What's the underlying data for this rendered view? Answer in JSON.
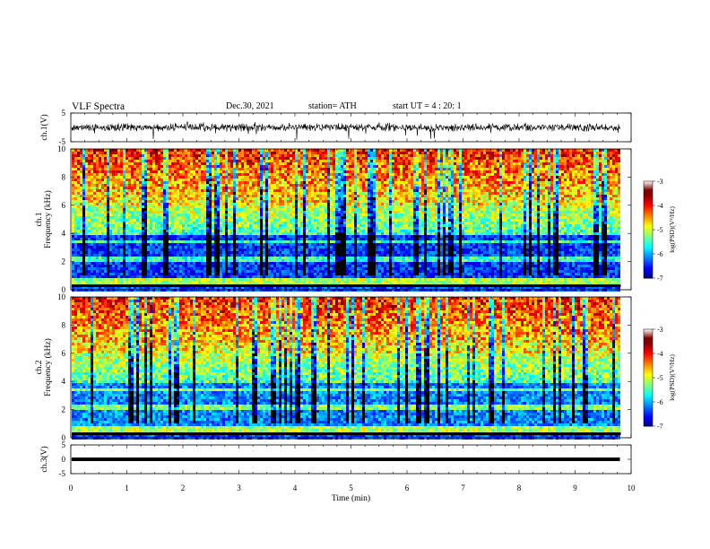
{
  "header": {
    "title": "VLF Spectra",
    "date": "Dec.30, 2021",
    "station": "station= ATH",
    "start_ut": "start UT =  4 : 20: 1"
  },
  "chart_data": [
    {
      "type": "line",
      "name": "ch1-waveform",
      "ylabel": "ch.1(V)",
      "xlim": [
        0,
        10
      ],
      "ylim": [
        -5,
        5
      ],
      "yticks": [
        "5",
        "-5"
      ],
      "baseline": 0,
      "data_extent_min": 9.8,
      "color": "#000000"
    },
    {
      "type": "heatmap",
      "name": "ch1-spectrogram",
      "ylabel": "ch.1\nFrequency (kHz)",
      "xlim": [
        0,
        10
      ],
      "ylim": [
        0,
        10
      ],
      "yticks": [
        "0",
        "2",
        "4",
        "6",
        "8",
        "10"
      ],
      "data_extent_min": 9.8,
      "colorbar": {
        "label": "log(PSD)(V²/Hz)",
        "range": [
          -7,
          -3
        ],
        "ticks": [
          "-3",
          "-4",
          "-5",
          "-6",
          "-7"
        ]
      }
    },
    {
      "type": "heatmap",
      "name": "ch2-spectrogram",
      "ylabel": "ch.2\nFrequency (kHz)",
      "xlim": [
        0,
        10
      ],
      "ylim": [
        0,
        10
      ],
      "yticks": [
        "0",
        "2",
        "4",
        "6",
        "8",
        "10"
      ],
      "data_extent_min": 9.8,
      "colorbar": {
        "label": "log(PSD)(V²/Hz)",
        "range": [
          -7,
          -3
        ],
        "ticks": [
          "-3",
          "-4",
          "-5",
          "-6",
          "-7"
        ]
      }
    },
    {
      "type": "line",
      "name": "ch3-waveform",
      "ylabel": "ch.3(V)",
      "xlim": [
        0,
        10
      ],
      "ylim": [
        -5,
        5
      ],
      "yticks": [
        "5",
        "0",
        "-5"
      ],
      "baseline": 0,
      "data_extent_min": 9.8,
      "color": "#000000",
      "xlabel": "Time (min)",
      "xticks": [
        "0",
        "1",
        "2",
        "3",
        "4",
        "5",
        "6",
        "7",
        "8",
        "9",
        "10"
      ]
    }
  ]
}
